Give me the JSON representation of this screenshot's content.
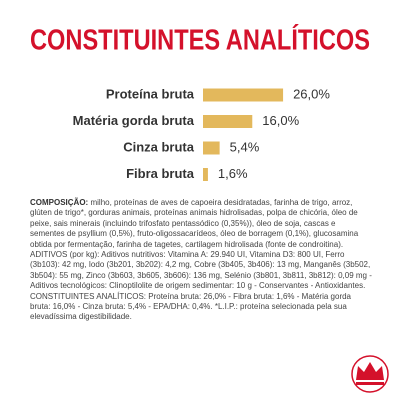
{
  "chart_data": {
    "type": "bar",
    "orientation": "horizontal",
    "title": "CONSTITUINTES ANALÍTICOS",
    "categories": [
      "Proteína bruta",
      "Matéria gorda bruta",
      "Cinza bruta",
      "Fibra bruta"
    ],
    "values": [
      26.0,
      16.0,
      5.4,
      1.6
    ],
    "value_labels": [
      "26,0%",
      "16,0%",
      "5,4%",
      "1,6%"
    ],
    "color": "#e3b85c"
  },
  "composition": {
    "label": "COMPOSIÇÃO:",
    "text": "milho, proteínas de aves de capoeira desidratadas, farinha de trigo, arroz, glúten de trigo*, gorduras animais, proteínas animais hidrolisadas, polpa de chicória, óleo de peixe, sais minerais (incluindo trifosfato pentassódico (0,35%)), óleo de soja, cascas e sementes de psyllium (0,5%), fruto-oligossacarídeos, óleo de borragem (0,1%), glucosamina obtida por fermentação, farinha de tagetes, cartilagem hidrolisada (fonte de condroitina). ADITIVOS (por kg): Aditivos nutritivos: Vitamina A: 29.940 UI, Vitamina D3: 800 UI, Ferro (3b103): 42 mg, Iodo (3b201, 3b202): 4,2 mg, Cobre (3b405, 3b406): 13 mg, Manganês (3b502, 3b504): 55 mg, Zinco (3b603, 3b605, 3b606): 136 mg, Selénio (3b801, 3b811, 3b812): 0,09 mg - Aditivos tecnológicos: Clinoptilolite de origem sedimentar: 10 g - Conservantes - Antioxidantes. CONSTITUINTES ANALÍTICOS: Proteína bruta: 26,0% - Fibra bruta: 1,6% - Matéria gorda bruta: 16,0% - Cinza bruta: 5,4% - EPA/DHA: 0,4%. *L.I.P.: proteína selecionada pela sua elevadíssima digestibilidade."
  }
}
